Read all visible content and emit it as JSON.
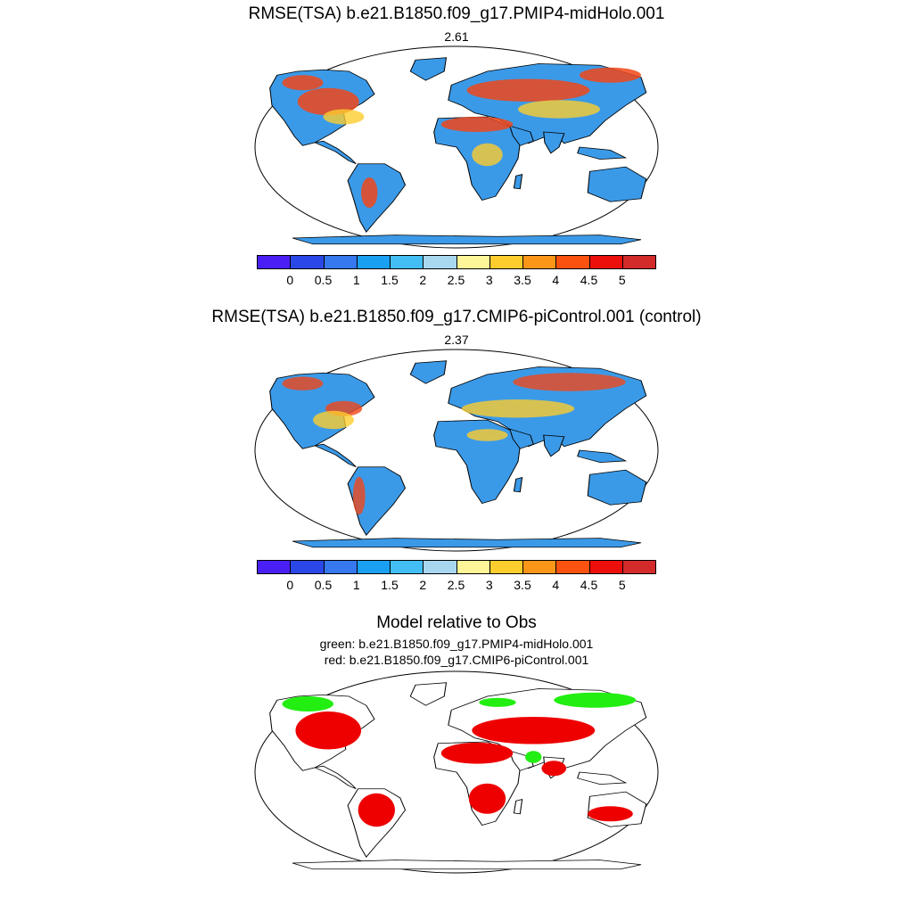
{
  "panel1": {
    "title": "RMSE(TSA) b.e21.B1850.f09_g17.PMIP4-midHolo.001",
    "value": "2.61"
  },
  "panel2": {
    "title": "RMSE(TSA) b.e21.B1850.f09_g17.CMIP6-piControl.001 (control)",
    "value": "2.37"
  },
  "panel3": {
    "title": "Model relative to Obs",
    "green_line": "green: b.e21.B1850.f09_g17.PMIP4-midHolo.001",
    "red_line": "red: b.e21.B1850.f09_g17.CMIP6-piControl.001"
  },
  "colorbar": {
    "colors": [
      "#4a1ff5",
      "#2a48e8",
      "#3678ee",
      "#1aa0f2",
      "#43bef4",
      "#a7d8f0",
      "#fdf597",
      "#fdcd2e",
      "#fc9618",
      "#fb5210",
      "#ec0f0b",
      "#d32a2a"
    ],
    "labels": [
      "0",
      "0.5",
      "1",
      "1.5",
      "2",
      "2.5",
      "3",
      "3.5",
      "4",
      "4.5",
      "5"
    ]
  }
}
